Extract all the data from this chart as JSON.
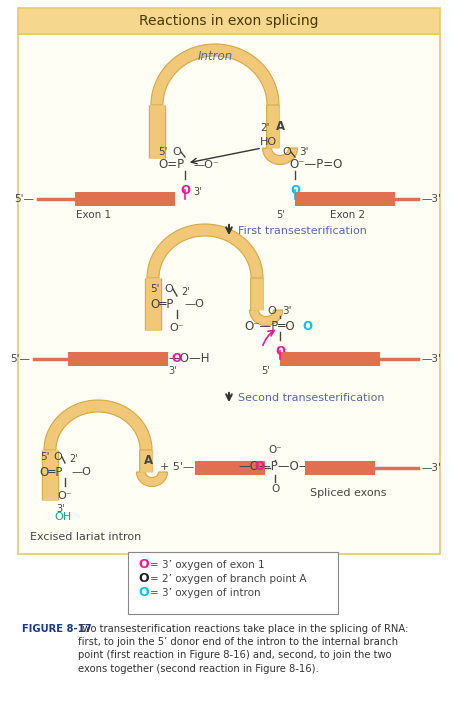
{
  "title": "Reactions in exon splicing",
  "title_bg": "#F5D78E",
  "panel_bg": "#FFFEF5",
  "outer_bg": "#FFFFFF",
  "panel_border": "#E8C96A",
  "exon_color": "#E07050",
  "intron_color": "#F0C878",
  "intron_outline": "#D4A844",
  "ph_color": "#444444",
  "o_red": "#FF1493",
  "o_blue": "#00BFFF",
  "o_black": "#222222",
  "txt_color": "#444444",
  "label_blue": "#5566AA",
  "arrow_label_color": "#5566AA",
  "fig_caption_color": "#1a3a8a",
  "fig_text_color": "#333333",
  "figure_caption_bold": "FIGURE 8-17",
  "figure_caption": " Two transesterification reactions take place in the splicing of RNA: first, to join the 5’ donor end of the intron to the internal branch point (first reaction in Figure 8-16) and, second, to join the two exons together (second reaction in Figure 8-16).",
  "legend_items": [
    {
      "color": "#FF1493",
      "text": "= 3’ oxygen of exon 1"
    },
    {
      "color": "#222222",
      "text": "= 2’ oxygen of branch point A"
    },
    {
      "color": "#00BFFF",
      "text": "= 3’ oxygen of intron"
    }
  ]
}
